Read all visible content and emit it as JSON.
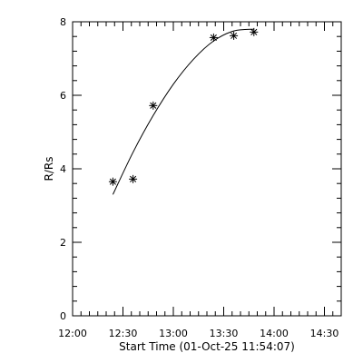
{
  "chart_data": {
    "type": "scatter",
    "xlabel": "Start Time (01-Oct-25 11:54:07)",
    "ylabel": "R/Rs",
    "xlim": [
      "12:00",
      "14:40"
    ],
    "ylim": [
      0,
      8
    ],
    "x_ticks": [
      "12:00",
      "12:30",
      "13:00",
      "13:30",
      "14:00",
      "14:30"
    ],
    "y_ticks": [
      "0",
      "2",
      "4",
      "6",
      "8"
    ],
    "grid": false,
    "series": [
      {
        "kind": "points",
        "marker": "asterisk",
        "points": [
          {
            "x": "12:24",
            "y": 3.65
          },
          {
            "x": "12:36",
            "y": 3.72
          },
          {
            "x": "12:48",
            "y": 5.72
          },
          {
            "x": "13:24",
            "y": 7.57
          },
          {
            "x": "13:36",
            "y": 7.62
          },
          {
            "x": "13:48",
            "y": 7.72
          }
        ]
      },
      {
        "kind": "fit-curve",
        "points": [
          {
            "x": "12:24",
            "y": 3.3
          },
          {
            "x": "12:36",
            "y": 4.45
          },
          {
            "x": "12:48",
            "y": 5.45
          },
          {
            "x": "13:00",
            "y": 6.3
          },
          {
            "x": "13:12",
            "y": 6.98
          },
          {
            "x": "13:24",
            "y": 7.48
          },
          {
            "x": "13:36",
            "y": 7.75
          },
          {
            "x": "13:48",
            "y": 7.8
          }
        ]
      }
    ]
  }
}
